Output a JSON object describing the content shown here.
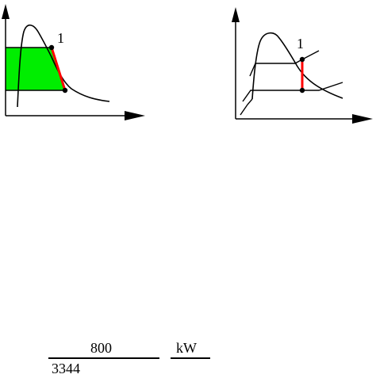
{
  "diagrams": {
    "left": {
      "point_label": "1"
    },
    "right": {
      "point_label": "1"
    }
  },
  "equation": {
    "numerator": "800",
    "denominator": "3344",
    "unit": "kW"
  },
  "colors": {
    "shaded_area": "#00ee00",
    "process_line": "#ff0000",
    "stroke": "#000000"
  }
}
